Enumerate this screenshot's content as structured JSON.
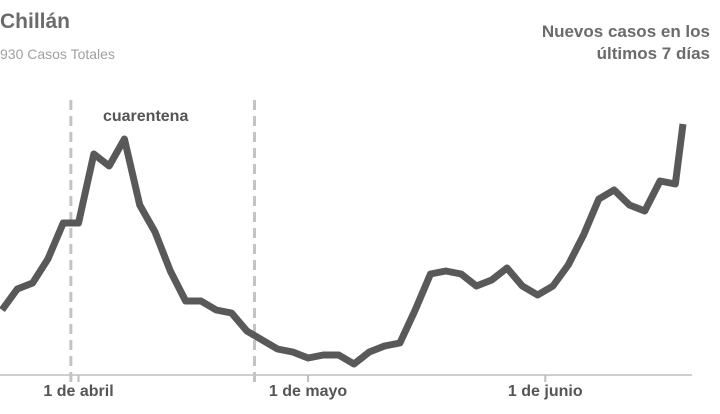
{
  "chart_data": {
    "type": "line",
    "title": "Chillán",
    "subtitle": "930 Casos Totales",
    "series_label": "Nuevos casos en los últimos 7 días",
    "color": "#595959",
    "x": [
      "03-22",
      "03-24",
      "03-26",
      "03-28",
      "03-30",
      "04-01",
      "04-03",
      "04-05",
      "04-07",
      "04-09",
      "04-11",
      "04-13",
      "04-15",
      "04-17",
      "04-19",
      "04-21",
      "04-23",
      "04-25",
      "04-27",
      "04-29",
      "05-01",
      "05-03",
      "05-05",
      "05-07",
      "05-09",
      "05-11",
      "05-13",
      "05-15",
      "05-17",
      "05-19",
      "05-21",
      "05-23",
      "05-25",
      "05-27",
      "05-29",
      "05-31",
      "06-02",
      "06-04",
      "06-06",
      "06-08",
      "06-10",
      "06-12",
      "06-14",
      "06-16",
      "06-18",
      "06-19"
    ],
    "values": [
      21,
      28,
      30,
      38,
      50,
      50,
      73,
      69,
      78,
      56,
      47,
      34,
      24,
      24,
      21,
      20,
      14,
      11,
      8,
      7,
      5,
      6,
      6,
      3,
      7,
      9,
      10,
      21,
      33,
      34,
      33,
      29,
      31,
      35,
      29,
      26,
      29,
      36,
      46,
      58,
      61,
      56,
      54,
      64,
      63,
      83
    ],
    "xticks": [
      {
        "value": "04-01",
        "label": "1 de abril"
      },
      {
        "value": "05-01",
        "label": "1 de mayo"
      },
      {
        "value": "06-01",
        "label": "1 de junio"
      }
    ],
    "annotation": {
      "text": "cuarentena",
      "range": [
        "03-31",
        "04-24"
      ]
    }
  }
}
